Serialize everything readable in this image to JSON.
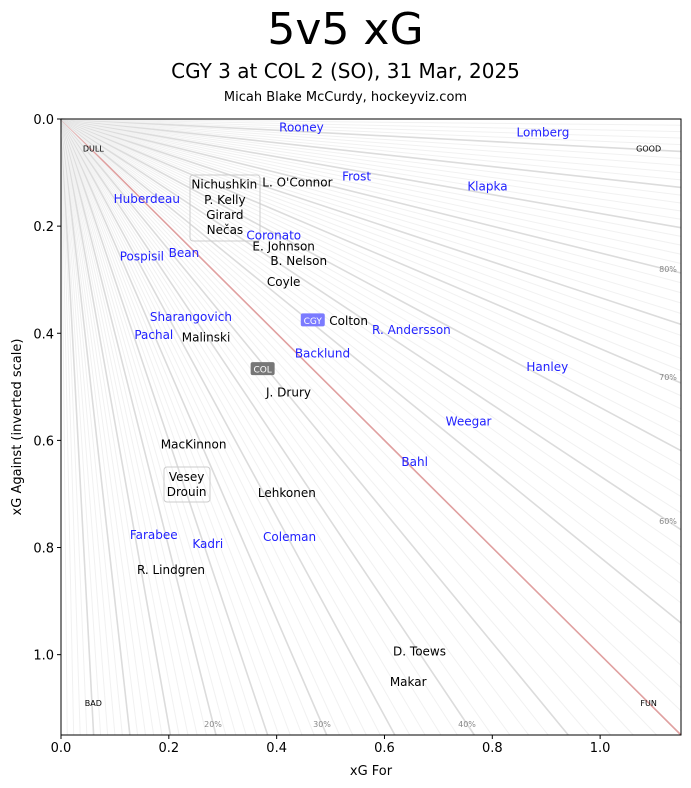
{
  "chart_data": {
    "type": "scatter",
    "title": "5v5 xG",
    "subtitle": "CGY 3 at COL 2 (SO), 31 Mar, 2025",
    "credit": "Micah Blake McCurdy, hockeyviz.com",
    "xlabel": "xG For",
    "ylabel": "xG Against (inverted scale)",
    "xlim": [
      0,
      1.15
    ],
    "ylim": [
      1.15,
      0
    ],
    "xticks": [
      "0.0",
      "0.2",
      "0.4",
      "0.6",
      "0.8",
      "1.0"
    ],
    "yticks": [
      "0.0",
      "0.2",
      "0.4",
      "0.6",
      "0.8",
      "1.0"
    ],
    "colors": {
      "CGY": "#1f1fff",
      "COL": "#000000",
      "reference_line": "#e0a0a0",
      "grid": "#d8d8d8"
    },
    "corner_labels": [
      {
        "text": "DULL",
        "x": 0.06,
        "y": 0.055
      },
      {
        "text": "GOOD",
        "x": 1.09,
        "y": 0.055
      },
      {
        "text": "BAD",
        "x": 0.06,
        "y": 1.09
      },
      {
        "text": "FUN",
        "x": 1.09,
        "y": 1.09
      }
    ],
    "percent_labels": [
      "20%",
      "30%",
      "40%",
      "60%",
      "70%",
      "80%"
    ],
    "teams": [
      {
        "name": "CGY",
        "x": 0.467,
        "y": 0.376,
        "color": "#7b7bff"
      },
      {
        "name": "COL",
        "x": 0.374,
        "y": 0.467,
        "color": "#777777"
      }
    ],
    "players": [
      {
        "name": "Rooney",
        "team": "CGY",
        "x": 0.446,
        "y": 0.015
      },
      {
        "name": "Lomberg",
        "team": "CGY",
        "x": 0.894,
        "y": 0.024
      },
      {
        "name": "Nichushkin",
        "team": "COL",
        "x": 0.303,
        "y": 0.121,
        "boxed": true
      },
      {
        "name": "L. O'Connor",
        "team": "COL",
        "x": 0.42,
        "y": 0.118
      },
      {
        "name": "Frost",
        "team": "CGY",
        "x": 0.5,
        "y": 0.114
      },
      {
        "name": "Klapka",
        "team": "CGY",
        "x": 0.791,
        "y": 0.125
      },
      {
        "name": "Huberdeau",
        "team": "CGY",
        "x": 0.289,
        "y": 0.148
      },
      {
        "name": "P. Kelly",
        "team": "COL",
        "x": 0.304,
        "y": 0.15,
        "boxed": true
      },
      {
        "name": "Girard",
        "team": "COL",
        "x": 0.304,
        "y": 0.178,
        "boxed": true
      },
      {
        "name": "Nečas",
        "team": "COL",
        "x": 0.304,
        "y": 0.206,
        "boxed": true
      },
      {
        "name": "Coronato",
        "team": "CGY",
        "x": 0.365,
        "y": 0.213
      },
      {
        "name": "E. Johnson",
        "team": "COL",
        "x": 0.413,
        "y": 0.237
      },
      {
        "name": "B. Nelson",
        "team": "COL",
        "x": 0.441,
        "y": 0.264
      },
      {
        "name": "Coyle",
        "team": "COL",
        "x": 0.413,
        "y": 0.303
      },
      {
        "name": "Pospisil",
        "team": "CGY",
        "x": 0.15,
        "y": 0.256
      },
      {
        "name": "Bean",
        "team": "CGY",
        "x": 0.228,
        "y": 0.249
      },
      {
        "name": "Sharangovich",
        "team": "CGY",
        "x": 0.241,
        "y": 0.374
      },
      {
        "name": "Pachal",
        "team": "CGY",
        "x": 0.187,
        "y": 0.393
      },
      {
        "name": "Malinski",
        "team": "COL",
        "x": 0.269,
        "y": 0.407
      },
      {
        "name": "Colton",
        "team": "COL",
        "x": 0.515,
        "y": 0.376
      },
      {
        "name": "R. Andersson",
        "team": "CGY",
        "x": 0.65,
        "y": 0.393
      },
      {
        "name": "Backlund",
        "team": "CGY",
        "x": 0.485,
        "y": 0.437
      },
      {
        "name": "Hanley",
        "team": "CGY",
        "x": 0.902,
        "y": 0.462
      },
      {
        "name": "J. Drury",
        "team": "COL",
        "x": 0.422,
        "y": 0.51
      },
      {
        "name": "Weegar",
        "team": "CGY",
        "x": 0.756,
        "y": 0.564
      },
      {
        "name": "MacKinnon",
        "team": "COL",
        "x": 0.246,
        "y": 0.607
      },
      {
        "name": "Bahl",
        "team": "CGY",
        "x": 0.656,
        "y": 0.639
      },
      {
        "name": "Vesey",
        "team": "COL",
        "x": 0.233,
        "y": 0.667,
        "boxed2": true
      },
      {
        "name": "Drouin",
        "team": "COL",
        "x": 0.233,
        "y": 0.695,
        "boxed2": true
      },
      {
        "name": "Lehkonen",
        "team": "COL",
        "x": 0.419,
        "y": 0.697
      },
      {
        "name": "Farabee",
        "team": "CGY",
        "x": 0.198,
        "y": 0.779
      },
      {
        "name": "Kadri",
        "team": "CGY",
        "x": 0.25,
        "y": 0.785
      },
      {
        "name": "Coleman",
        "team": "CGY",
        "x": 0.424,
        "y": 0.779
      },
      {
        "name": "R. Lindgren",
        "team": "COL",
        "x": 0.204,
        "y": 0.841
      },
      {
        "name": "D. Toews",
        "team": "COL",
        "x": 0.665,
        "y": 0.993
      },
      {
        "name": "Makar",
        "team": "COL",
        "x": 0.644,
        "y": 1.05
      }
    ]
  }
}
